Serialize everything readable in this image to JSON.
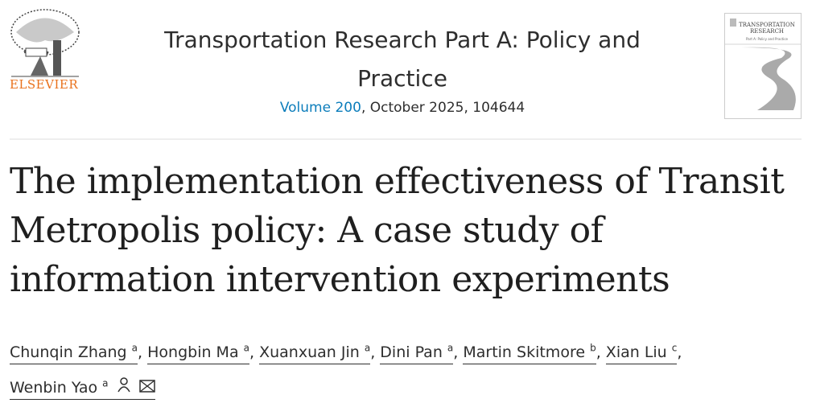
{
  "publisher": {
    "name": "ELSEVIER"
  },
  "journal": {
    "title": "Transportation Research Part A: Policy and Practice",
    "volume_link": "Volume 200",
    "rest": ", October 2025, 104644",
    "cover_title": "TRANSPORTATION RESEARCH",
    "cover_subtitle": "Part A: Policy and Practice"
  },
  "article": {
    "title": "The implementation effectiveness of Transit Metropolis policy: A case study of information intervention experiments"
  },
  "authors": [
    {
      "name": "Chunqin Zhang",
      "aff": "a"
    },
    {
      "name": "Hongbin Ma",
      "aff": "a"
    },
    {
      "name": "Xuanxuan Jin",
      "aff": "a"
    },
    {
      "name": "Dini Pan",
      "aff": "a"
    },
    {
      "name": "Martin Skitmore",
      "aff": "b"
    },
    {
      "name": "Xian Liu",
      "aff": "c"
    },
    {
      "name": "Wenbin Yao",
      "aff": "a",
      "icons": [
        "person-icon",
        "envelope-icon"
      ]
    }
  ],
  "colors": {
    "accent": "#0c7dbb",
    "brand": "#e9711c"
  }
}
